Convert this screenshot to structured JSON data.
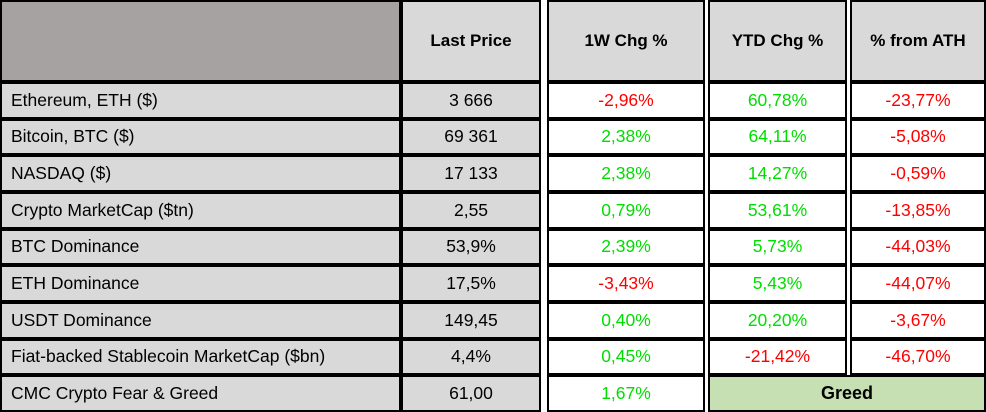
{
  "colors": {
    "header_corner_bg": "#a6a2a1",
    "header_bg": "#d9d9d9",
    "label_bg": "#d9d9d9",
    "positive": "#00dd00",
    "negative": "#ff0000",
    "greed_bg": "#c6e0b4",
    "border": "#000000"
  },
  "chart_data": {
    "type": "table",
    "columns": [
      "",
      "Last Price",
      "1W Chg %",
      "YTD Chg %",
      "% from ATH"
    ],
    "rows": [
      {
        "name": "Ethereum, ETH ($)",
        "last_price": "3 666",
        "chg_1w": "-2,96%",
        "chg_ytd": "60,78%",
        "from_ath": "-23,77%"
      },
      {
        "name": "Bitcoin, BTC ($)",
        "last_price": "69 361",
        "chg_1w": "2,38%",
        "chg_ytd": "64,11%",
        "from_ath": "-5,08%"
      },
      {
        "name": "NASDAQ ($)",
        "last_price": "17 133",
        "chg_1w": "2,38%",
        "chg_ytd": "14,27%",
        "from_ath": "-0,59%"
      },
      {
        "name": "Crypto MarketCap ($tn)",
        "last_price": "2,55",
        "chg_1w": "0,79%",
        "chg_ytd": "53,61%",
        "from_ath": "-13,85%"
      },
      {
        "name": "BTC Dominance",
        "last_price": "53,9%",
        "chg_1w": "2,39%",
        "chg_ytd": "5,73%",
        "from_ath": "-44,03%"
      },
      {
        "name": "ETH Dominance",
        "last_price": "17,5%",
        "chg_1w": "-3,43%",
        "chg_ytd": "5,43%",
        "from_ath": "-44,07%"
      },
      {
        "name": "USDT Dominance",
        "last_price": "149,45",
        "chg_1w": "0,40%",
        "chg_ytd": "20,20%",
        "from_ath": "-3,67%"
      },
      {
        "name": "Fiat-backed Stablecoin MarketCap ($bn)",
        "last_price": "4,4%",
        "chg_1w": "0,45%",
        "chg_ytd": "-21,42%",
        "from_ath": "-46,70%"
      },
      {
        "name": "CMC Crypto Fear & Greed",
        "last_price": "61,00",
        "chg_1w": "1,67%",
        "sentiment": "Greed"
      }
    ]
  }
}
